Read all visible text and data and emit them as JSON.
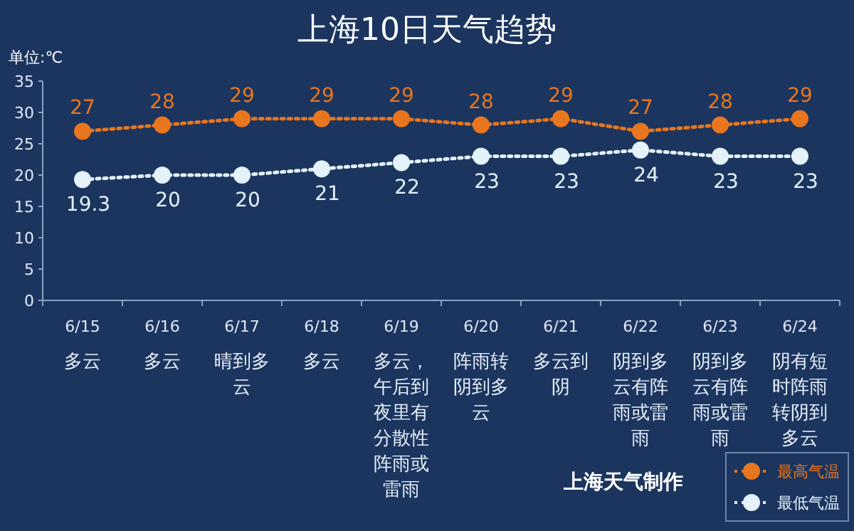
{
  "chart_data": {
    "type": "line",
    "title": "上海10日天气趋势",
    "ylabel": "单位:℃",
    "categories": [
      "6/15",
      "6/16",
      "6/17",
      "6/18",
      "6/19",
      "6/20",
      "6/21",
      "6/22",
      "6/23",
      "6/24"
    ],
    "series": [
      {
        "name": "最高气温",
        "color": "#e8761e",
        "values": [
          27,
          28,
          29,
          29,
          29,
          28,
          29,
          27,
          28,
          29
        ]
      },
      {
        "name": "最低气温",
        "color": "#e4f2fa",
        "values": [
          19.3,
          20,
          20,
          21,
          22,
          23,
          23,
          24,
          23,
          23
        ]
      }
    ],
    "ylim": [
      0,
      35
    ],
    "yticks": [
      0,
      5,
      10,
      15,
      20,
      25,
      30,
      35
    ],
    "data_labels": true,
    "marker": "circle",
    "line_style": "dotted",
    "legend": "bottom right",
    "grid": false,
    "annotations": [
      "多云",
      "多云",
      "晴到多云",
      "多云",
      "多云，午后到夜里有分散性阵雨或雷雨",
      "阵雨转阴到多云",
      "多云到阴",
      "阴到多云有阵雨或雷雨",
      "阴到多云有阵雨或雷雨",
      "阴有短时阵雨转阴到多云",
      "上海天气制作"
    ]
  }
}
